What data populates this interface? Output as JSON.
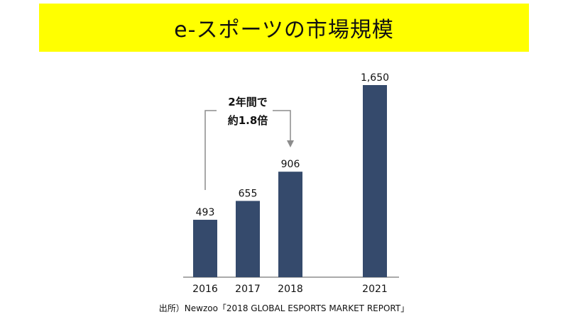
{
  "title": "e-スポーツの市場規模",
  "source": "出所）Newzoo「2018 GLOBAL ESPORTS MARKET REPORT」",
  "colors": {
    "title_band": "#ffff00",
    "bar": "#354a6c",
    "annotation": "#8c8c8c",
    "axis": "#555555"
  },
  "chart_data": {
    "type": "bar",
    "categories": [
      "2016",
      "2017",
      "2018",
      "2021"
    ],
    "values": [
      493,
      655,
      906,
      1650
    ],
    "value_labels": [
      "493",
      "655",
      "906",
      "1,650"
    ],
    "xlabel": "",
    "ylabel": "",
    "ylim": [
      0,
      1800
    ],
    "grid": false,
    "legend": "none",
    "annotation": {
      "from_category": "2016",
      "to_category": "2018",
      "line1": "2年間で",
      "line2": "約1.8倍"
    }
  }
}
